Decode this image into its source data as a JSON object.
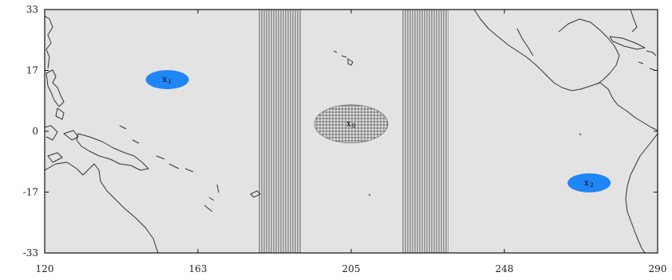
{
  "colors": {
    "ocean": "#e3e3e3",
    "coast": "#333333",
    "blue_region": "#1f86f5",
    "hatch_line": "#555555",
    "frame": "#111111"
  },
  "axes": {
    "x_ticks": [
      "120",
      "163",
      "205",
      "248",
      "290"
    ],
    "y_ticks": [
      "33",
      "17",
      "0",
      "-17",
      "-33"
    ],
    "x_range": [
      120,
      290
    ],
    "y_range": [
      -33,
      33
    ]
  },
  "markers": [
    {
      "id": "x1",
      "label": "x",
      "sub": "1",
      "lon": 154,
      "lat": 14,
      "style": "blue"
    },
    {
      "id": "x2",
      "label": "x",
      "sub": "2",
      "lon": 271,
      "lat": -14,
      "style": "blue"
    },
    {
      "id": "x0",
      "label": "x",
      "sub": "0",
      "lon": 205,
      "lat": 2,
      "style": "hatched"
    }
  ],
  "hatched_bands": [
    {
      "lon_min": 179,
      "lon_max": 191
    },
    {
      "lon_min": 219,
      "lon_max": 232
    }
  ]
}
